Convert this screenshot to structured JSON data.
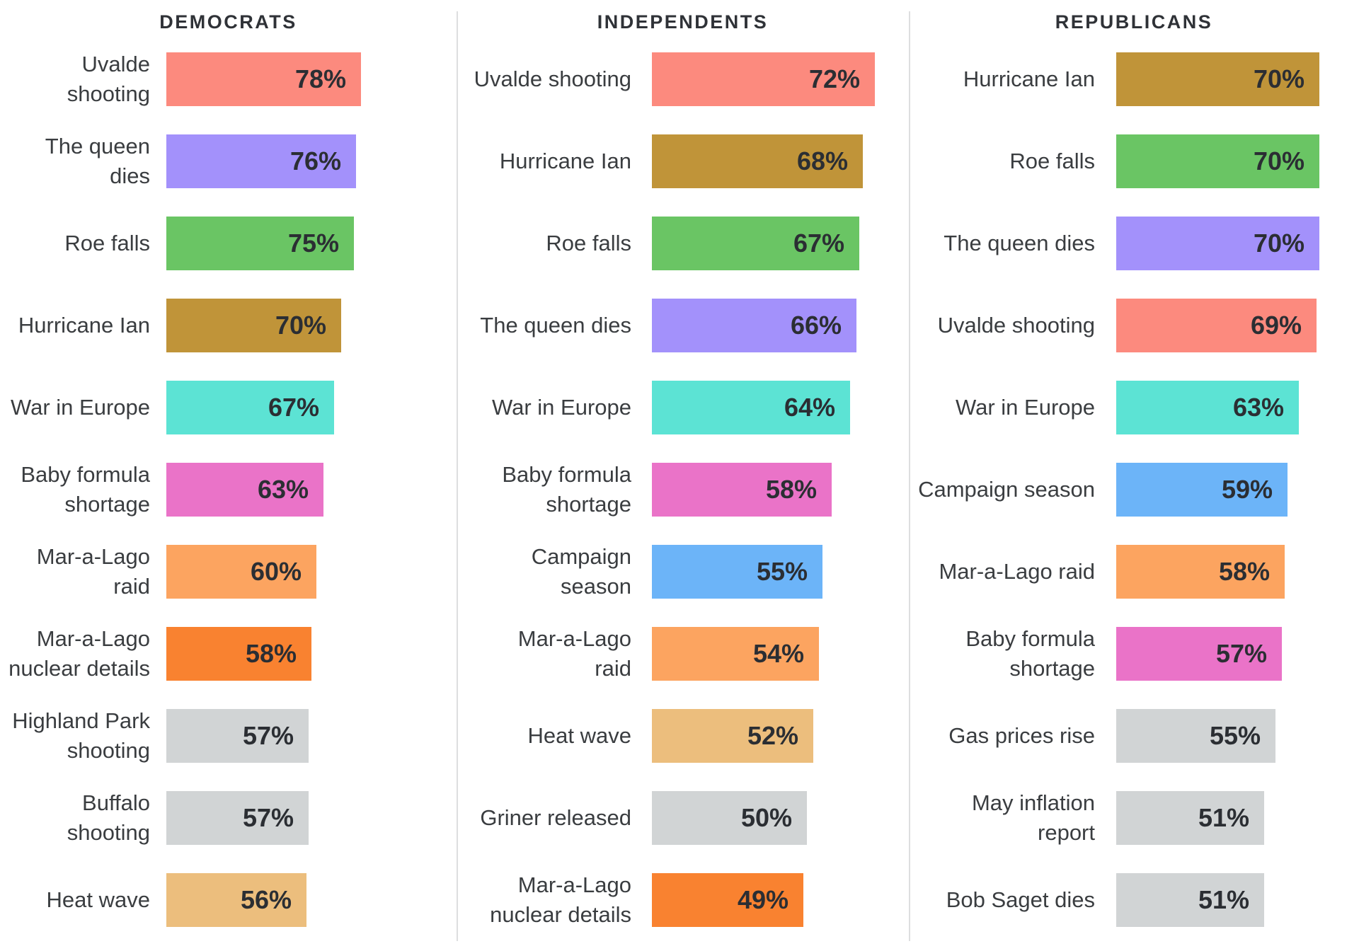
{
  "chart_data": {
    "type": "bar",
    "orientation": "horizontal",
    "value_unit": "%",
    "legend": "none",
    "gridlines": false,
    "axis": {
      "min": 0,
      "baseline": 0,
      "value_labels": "inside-bar-right",
      "bars_scaled_to_panel_max": true
    },
    "panel_max_values": [
      78,
      72,
      70
    ],
    "topic_colors": {
      "uvalde-shooting": "#FC8A7E",
      "queen-dies": "#A391FB",
      "roe-falls": "#6AC564",
      "hurricane-ian": "#C09439",
      "war-in-europe": "#5CE3D4",
      "baby-formula-shortage": "#EA73C8",
      "mar-a-lago-raid": "#FCA460",
      "mar-a-lago-nuclear": "#F98230",
      "campaign-season": "#6CB4F8",
      "heat-wave": "#ECBE7D",
      "highland-park-shooting": "#D1D4D5",
      "buffalo-shooting": "#D1D4D5",
      "griner-released": "#D1D4D5",
      "gas-prices-rise": "#D1D4D5",
      "may-inflation-report": "#D1D4D5",
      "bob-saget-dies": "#D1D4D5"
    },
    "text_colors": {
      "header": "#2F3237",
      "label": "#3A3D40",
      "value": "#2B2E33"
    },
    "groups": [
      {
        "title": "DEMOCRATS",
        "items": [
          {
            "label": "Uvalde shooting",
            "lines": [
              "Uvalde shooting"
            ],
            "value": 78,
            "display": "78%",
            "topic": "uvalde-shooting"
          },
          {
            "label": "The queen dies",
            "lines": [
              "The queen dies"
            ],
            "value": 76,
            "display": "76%",
            "topic": "queen-dies"
          },
          {
            "label": "Roe falls",
            "lines": [
              "Roe falls"
            ],
            "value": 75,
            "display": "75%",
            "topic": "roe-falls"
          },
          {
            "label": "Hurricane Ian",
            "lines": [
              "Hurricane Ian"
            ],
            "value": 70,
            "display": "70%",
            "topic": "hurricane-ian"
          },
          {
            "label": "War in Europe",
            "lines": [
              "War in Europe"
            ],
            "value": 67,
            "display": "67%",
            "topic": "war-in-europe"
          },
          {
            "label": "Baby formula shortage",
            "lines": [
              "Baby formula",
              "shortage"
            ],
            "value": 63,
            "display": "63%",
            "topic": "baby-formula-shortage"
          },
          {
            "label": "Mar-a-Lago raid",
            "lines": [
              "Mar-a-Lago",
              "raid"
            ],
            "value": 60,
            "display": "60%",
            "topic": "mar-a-lago-raid"
          },
          {
            "label": "Mar-a-Lago nuclear details",
            "lines": [
              "Mar-a-Lago",
              "nuclear details"
            ],
            "value": 58,
            "display": "58%",
            "topic": "mar-a-lago-nuclear"
          },
          {
            "label": "Highland Park shooting",
            "lines": [
              "Highland Park",
              "shooting"
            ],
            "value": 57,
            "display": "57%",
            "topic": "highland-park-shooting"
          },
          {
            "label": "Buffalo shooting",
            "lines": [
              "Buffalo shooting"
            ],
            "value": 57,
            "display": "57%",
            "topic": "buffalo-shooting"
          },
          {
            "label": "Heat wave",
            "lines": [
              "Heat wave"
            ],
            "value": 56,
            "display": "56%",
            "topic": "heat-wave"
          }
        ]
      },
      {
        "title": "INDEPENDENTS",
        "items": [
          {
            "label": "Uvalde shooting",
            "lines": [
              "Uvalde shooting"
            ],
            "value": 72,
            "display": "72%",
            "topic": "uvalde-shooting"
          },
          {
            "label": "Hurricane Ian",
            "lines": [
              "Hurricane Ian"
            ],
            "value": 68,
            "display": "68%",
            "topic": "hurricane-ian"
          },
          {
            "label": "Roe falls",
            "lines": [
              "Roe falls"
            ],
            "value": 67,
            "display": "67%",
            "topic": "roe-falls"
          },
          {
            "label": "The queen dies",
            "lines": [
              "The queen dies"
            ],
            "value": 66,
            "display": "66%",
            "topic": "queen-dies"
          },
          {
            "label": "War in Europe",
            "lines": [
              "War in Europe"
            ],
            "value": 64,
            "display": "64%",
            "topic": "war-in-europe"
          },
          {
            "label": "Baby formula shortage",
            "lines": [
              "Baby formula",
              "shortage"
            ],
            "value": 58,
            "display": "58%",
            "topic": "baby-formula-shortage"
          },
          {
            "label": "Campaign season",
            "lines": [
              "Campaign",
              "season"
            ],
            "value": 55,
            "display": "55%",
            "topic": "campaign-season"
          },
          {
            "label": "Mar-a-Lago raid",
            "lines": [
              "Mar-a-Lago",
              "raid"
            ],
            "value": 54,
            "display": "54%",
            "topic": "mar-a-lago-raid"
          },
          {
            "label": "Heat wave",
            "lines": [
              "Heat wave"
            ],
            "value": 52,
            "display": "52%",
            "topic": "heat-wave"
          },
          {
            "label": "Griner released",
            "lines": [
              "Griner released"
            ],
            "value": 50,
            "display": "50%",
            "topic": "griner-released"
          },
          {
            "label": "Mar-a-Lago nuclear details",
            "lines": [
              "Mar-a-Lago",
              "nuclear details"
            ],
            "value": 49,
            "display": "49%",
            "topic": "mar-a-lago-nuclear"
          }
        ]
      },
      {
        "title": "REPUBLICANS",
        "items": [
          {
            "label": "Hurricane Ian",
            "lines": [
              "Hurricane Ian"
            ],
            "value": 70,
            "display": "70%",
            "topic": "hurricane-ian"
          },
          {
            "label": "Roe falls",
            "lines": [
              "Roe falls"
            ],
            "value": 70,
            "display": "70%",
            "topic": "roe-falls"
          },
          {
            "label": "The queen dies",
            "lines": [
              "The queen dies"
            ],
            "value": 70,
            "display": "70%",
            "topic": "queen-dies"
          },
          {
            "label": "Uvalde shooting",
            "lines": [
              "Uvalde shooting"
            ],
            "value": 69,
            "display": "69%",
            "topic": "uvalde-shooting"
          },
          {
            "label": "War in Europe",
            "lines": [
              "War in Europe"
            ],
            "value": 63,
            "display": "63%",
            "topic": "war-in-europe"
          },
          {
            "label": "Campaign season",
            "lines": [
              "Campaign season"
            ],
            "value": 59,
            "display": "59%",
            "topic": "campaign-season"
          },
          {
            "label": "Mar-a-Lago raid",
            "lines": [
              "Mar-a-Lago raid"
            ],
            "value": 58,
            "display": "58%",
            "topic": "mar-a-lago-raid"
          },
          {
            "label": "Baby formula shortage",
            "lines": [
              "Baby formula",
              "shortage"
            ],
            "value": 57,
            "display": "57%",
            "topic": "baby-formula-shortage"
          },
          {
            "label": "Gas prices rise",
            "lines": [
              "Gas prices rise"
            ],
            "value": 55,
            "display": "55%",
            "topic": "gas-prices-rise"
          },
          {
            "label": "May inflation report",
            "lines": [
              "May inflation",
              "report"
            ],
            "value": 51,
            "display": "51%",
            "topic": "may-inflation-report"
          },
          {
            "label": "Bob Saget dies",
            "lines": [
              "Bob Saget dies"
            ],
            "value": 51,
            "display": "51%",
            "topic": "bob-saget-dies"
          }
        ]
      }
    ]
  }
}
